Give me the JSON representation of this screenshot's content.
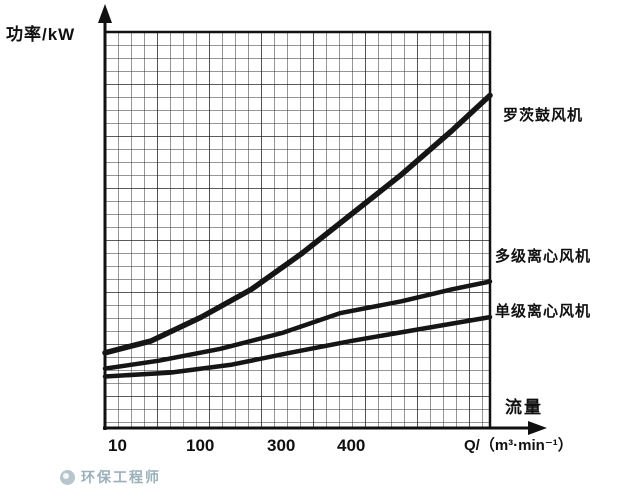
{
  "chart_data": {
    "type": "line",
    "title": "",
    "ylabel": "功率/kW",
    "xlabel": "流量",
    "x_unit_label": "Q/（m³·min⁻¹）",
    "x_tick_labels": [
      "10",
      "100",
      "300",
      "400"
    ],
    "y_tick_labels": [],
    "grid": "dense graph-paper grid over whole plot",
    "legend_position": "labels at right side next to each curve end",
    "y_scale_note": "y axis has no numeric ticks; point y-values are relative fractions of plot height (0 = x-axis, 1 = top of grid)",
    "series": [
      {
        "name": "罗茨鼓风机",
        "line_width": 5.5,
        "points": [
          [
            0,
            0.19
          ],
          [
            0.12,
            0.22
          ],
          [
            0.25,
            0.28
          ],
          [
            0.38,
            0.35
          ],
          [
            0.51,
            0.44
          ],
          [
            0.64,
            0.54
          ],
          [
            0.77,
            0.64
          ],
          [
            0.9,
            0.75
          ],
          [
            1,
            0.84
          ]
        ]
      },
      {
        "name": "多级离心风机",
        "line_width": 4.5,
        "points": [
          [
            0,
            0.15
          ],
          [
            0.14,
            0.17
          ],
          [
            0.3,
            0.2
          ],
          [
            0.46,
            0.24
          ],
          [
            0.61,
            0.29
          ],
          [
            0.77,
            0.32
          ],
          [
            0.9,
            0.35
          ],
          [
            1,
            0.37
          ]
        ]
      },
      {
        "name": "单级离心风机",
        "line_width": 4.5,
        "points": [
          [
            0,
            0.13
          ],
          [
            0.17,
            0.14
          ],
          [
            0.33,
            0.16
          ],
          [
            0.48,
            0.19
          ],
          [
            0.64,
            0.22
          ],
          [
            0.82,
            0.25
          ],
          [
            1,
            0.28
          ]
        ]
      }
    ]
  },
  "watermark": {
    "text": "环保工程师"
  },
  "colors": {
    "background": "#ffffff",
    "curve": "#151515",
    "grid_minor": "#2e2e2e",
    "grid_major": "#1c1c1c",
    "axis": "#111111",
    "text": "#101010",
    "watermark": "#9bb0b9"
  }
}
